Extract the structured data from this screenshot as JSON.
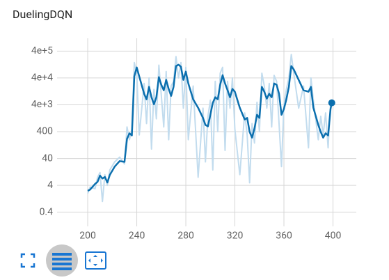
{
  "chart_data": {
    "type": "line",
    "title": "DuelingDQN",
    "log_y": true,
    "grid": true,
    "x": [
      200,
      202,
      206,
      208,
      210,
      212,
      214,
      216,
      218,
      222,
      226,
      230,
      232,
      234,
      236,
      238,
      240,
      242,
      246,
      248,
      250,
      252,
      254,
      256,
      258,
      260,
      262,
      264,
      266,
      268,
      270,
      272,
      274,
      276,
      278,
      280,
      282,
      286,
      290,
      294,
      296,
      298,
      300,
      302,
      304,
      306,
      308,
      310,
      312,
      314,
      316,
      318,
      320,
      324,
      328,
      330,
      332,
      334,
      336,
      338,
      340,
      342,
      344,
      346,
      348,
      350,
      352,
      354,
      356,
      358,
      360,
      362,
      364,
      366,
      368,
      372,
      376,
      380,
      382,
      384,
      388,
      390,
      392,
      394,
      396,
      398,
      399
    ],
    "series": [
      {
        "color": "#c2dcee",
        "values": [
          2.0,
          3.5,
          3.0,
          8,
          12,
          1.0,
          10,
          4,
          15,
          30,
          45,
          25,
          600,
          200,
          500,
          150000,
          60000,
          300,
          25000,
          800,
          40000,
          90,
          15000,
          1200,
          120000,
          9000,
          600,
          70000,
          200,
          20000,
          30000,
          250000,
          40000,
          150000,
          3000,
          100000,
          200,
          20000,
          8,
          3000,
          30,
          1500,
          6000,
          15,
          30000,
          400,
          60000,
          100000,
          80,
          30000,
          3000,
          40000,
          500,
          10,
          2000,
          300,
          5,
          800,
          150,
          5000,
          400,
          60000,
          20000,
          3000,
          25000,
          600,
          50000,
          30000,
          800,
          20,
          4000,
          15000,
          40000,
          300000,
          60000,
          3000,
          20000,
          100,
          40000,
          6000,
          200,
          1500,
          300,
          2000,
          100,
          5000,
          4750
        ]
      },
      {
        "color": "#0b6fae",
        "values": [
          2.5,
          2.8,
          4.5,
          5.4,
          9.2,
          7.2,
          8.2,
          5.1,
          9.8,
          20,
          32,
          30,
          215,
          347,
          290,
          45600,
          98800,
          45600,
          10300,
          6400,
          18700,
          7660,
          4200,
          7660,
          43000,
          22300,
          13900,
          33900,
          15600,
          8600,
          18700,
          111000,
          125000,
          105000,
          33900,
          69000,
          25000,
          6400,
          3100,
          1300,
          710,
          630,
          1700,
          4750,
          7660,
          6400,
          22300,
          51000,
          25000,
          13900,
          7660,
          15600,
          12300,
          3100,
          1140,
          1300,
          390,
          240,
          530,
          1700,
          1300,
          18700,
          12300,
          6800,
          10300,
          7660,
          25000,
          22300,
          10300,
          1700,
          2800,
          6400,
          18700,
          111000,
          83000,
          33900,
          13900,
          12300,
          18700,
          3100,
          710,
          390,
          240,
          347,
          290,
          2800,
          4750
        ]
      }
    ],
    "xlim": [
      175,
      419
    ],
    "xticks": [
      200,
      240,
      280,
      320,
      360,
      400
    ],
    "ylim": [
      0.16,
      1200000
    ],
    "yticks": [
      0.4,
      4,
      40,
      400,
      {
        "value": 4000,
        "label": "4e+3"
      },
      {
        "value": 40000,
        "label": "4e+4"
      },
      {
        "value": 400000,
        "label": "4e+5"
      }
    ]
  }
}
